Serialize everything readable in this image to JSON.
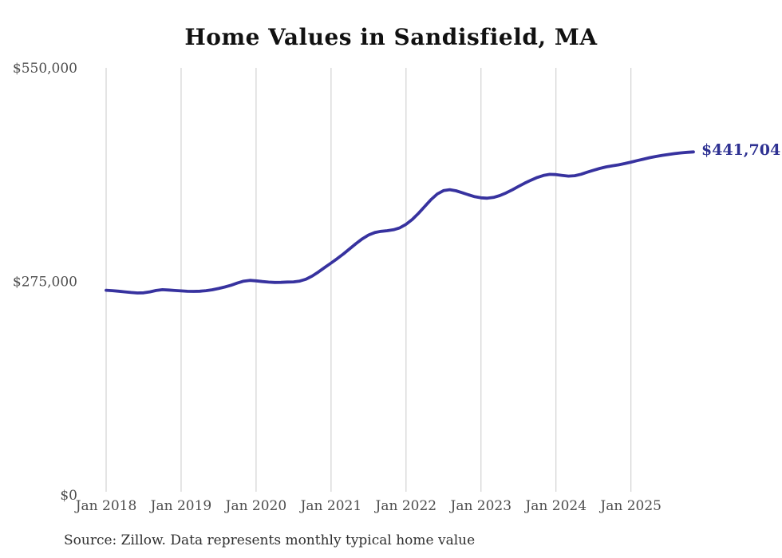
{
  "page": {
    "background_color": "#ffffff"
  },
  "header": {
    "title": "Home Values in Sandisfield, MA"
  },
  "chart_data": {
    "type": "line",
    "title": "Home Values in Sandisfield, MA",
    "xlabel": "",
    "ylabel": "",
    "x_unit": "month",
    "x_start": "Jan 2018",
    "x_end": "Nov 2025",
    "x_tick_labels": [
      "Jan 2018",
      "Jan 2019",
      "Jan 2020",
      "Jan 2021",
      "Jan 2022",
      "Jan 2023",
      "Jan 2024",
      "Jan 2025"
    ],
    "y_tick_labels": [
      "$0",
      "$275,000",
      "$550,000"
    ],
    "y_tick_values": [
      0,
      275000,
      550000
    ],
    "ylim": [
      0,
      550000
    ],
    "grid": "vertical-only",
    "legend": "none",
    "line_color": "#37329f",
    "grid_color": "#c9c9c9",
    "axis_label_color": "#4d4d4d",
    "end_label": "$441,704",
    "end_label_color": "#2e3192",
    "series_name": "Typical home value",
    "values": [
      263600,
      263100,
      262400,
      261500,
      260700,
      260100,
      260300,
      261500,
      263300,
      264300,
      263900,
      263300,
      262800,
      262300,
      262100,
      262400,
      263100,
      264200,
      265800,
      267800,
      270100,
      272800,
      275300,
      276300,
      275700,
      274800,
      274100,
      273700,
      273800,
      274200,
      274400,
      275400,
      277900,
      282000,
      287200,
      293100,
      298600,
      304400,
      310500,
      317100,
      323700,
      329800,
      334700,
      337900,
      339500,
      340300,
      341500,
      344000,
      348500,
      354800,
      362700,
      371500,
      380400,
      387600,
      391900,
      393100,
      391700,
      389200,
      386500,
      384100,
      382600,
      382100,
      383100,
      385500,
      388900,
      392900,
      397300,
      401500,
      405400,
      408800,
      411400,
      412900,
      412600,
      411500,
      410600,
      411100,
      413000,
      415600,
      418100,
      420500,
      422400,
      423900,
      425100,
      426700,
      428600,
      430500,
      432400,
      434300,
      435900,
      437300,
      438500,
      439600,
      440500,
      441200,
      441704
    ]
  },
  "footer": {
    "source_text": "Source: Zillow. Data represents monthly typical home value"
  }
}
